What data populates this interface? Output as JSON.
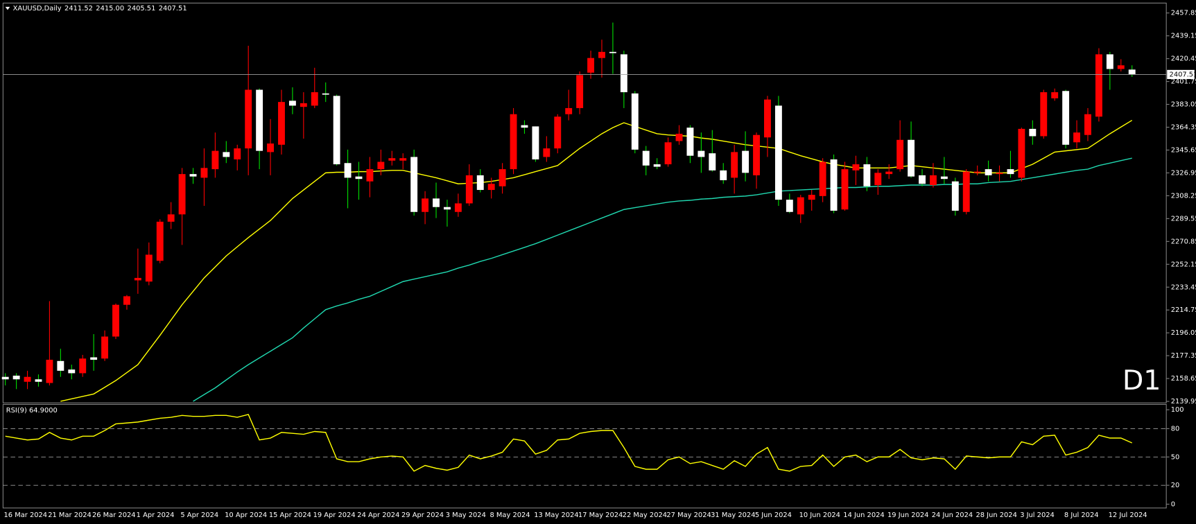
{
  "chart_data": [
    {
      "type": "candlestick",
      "title": "XAUUSD,Daily",
      "ohlc_labels": [
        "2411.52",
        "2415.00",
        "2405.51",
        "2407.51"
      ],
      "categories": [
        "16 Mar 2024",
        null,
        null,
        null,
        "21 Mar 2024",
        null,
        null,
        null,
        "26 Mar 2024",
        null,
        null,
        null,
        "1 Apr 2024",
        null,
        null,
        null,
        "5 Apr 2024",
        null,
        null,
        null,
        "10 Apr 2024",
        null,
        null,
        null,
        "15 Apr 2024",
        null,
        null,
        null,
        "19 Apr 2024",
        null,
        null,
        null,
        "24 Apr 2024",
        null,
        null,
        null,
        "29 Apr 2024",
        null,
        null,
        null,
        "3 May 2024",
        null,
        null,
        null,
        "8 May 2024",
        null,
        null,
        null,
        "13 May 2024",
        null,
        null,
        null,
        "17 May 2024",
        null,
        null,
        null,
        "22 May 2024",
        null,
        null,
        null,
        "27 May 2024",
        null,
        null,
        null,
        "31 May 2024",
        null,
        null,
        null,
        "5 Jun 2024",
        null,
        null,
        null,
        "10 Jun 2024",
        null,
        null,
        null,
        "14 Jun 2024",
        null,
        null,
        null,
        "19 Jun 2024",
        null,
        null,
        null,
        "24 Jun 2024",
        null,
        null,
        null,
        "28 Jun 2024",
        null,
        null,
        null,
        "3 Jul 2024",
        null,
        null,
        null,
        "8 Jul 2024",
        null,
        null,
        null,
        "12 Jul 2024",
        null,
        null
      ],
      "open": [
        2160,
        2161,
        2156,
        2158,
        2155,
        2173,
        2166,
        2163,
        2176,
        2175,
        2193,
        2219,
        2239,
        2238,
        2255,
        2287,
        2293,
        2326,
        2323,
        2330,
        2344,
        2338,
        2347,
        2395,
        2344,
        2350,
        2386,
        2381,
        2382,
        2392,
        2390,
        2335,
        2324,
        2320,
        2330,
        2337,
        2337,
        2340,
        2295,
        2306,
        2299,
        2295,
        2302,
        2325,
        2313,
        2316,
        2330,
        2366,
        2365,
        2340,
        2347,
        2375,
        2380,
        2409,
        2421,
        2426,
        2424,
        2392,
        2345,
        2334,
        2334,
        2353,
        2364,
        2345,
        2343,
        2329,
        2323,
        2345,
        2325,
        2356,
        2382,
        2305,
        2293,
        2305,
        2308,
        2338,
        2297,
        2329,
        2334,
        2317,
        2326,
        2330,
        2354,
        2325,
        2317,
        2324,
        2320,
        2295,
        2327,
        2330,
        2326,
        2330,
        2323,
        2363,
        2357,
        2388,
        2394,
        2352,
        2358,
        2373,
        2424,
        2412,
        2411.52
      ],
      "high": [
        2163,
        2163,
        2165,
        2162,
        2222,
        2183,
        2170,
        2178,
        2195,
        2198,
        2220,
        2227,
        2265,
        2270,
        2289,
        2303,
        2331,
        2331,
        2347,
        2360,
        2353,
        2350,
        2431,
        2396,
        2371,
        2395,
        2397,
        2393,
        2413,
        2401,
        2391,
        2346,
        2336,
        2340,
        2346,
        2345,
        2343,
        2346,
        2312,
        2319,
        2305,
        2310,
        2334,
        2330,
        2323,
        2335,
        2380,
        2370,
        2365,
        2357,
        2375,
        2395,
        2410,
        2427,
        2436,
        2450,
        2427,
        2394,
        2349,
        2339,
        2356,
        2366,
        2366,
        2360,
        2362,
        2335,
        2350,
        2361,
        2360,
        2390,
        2390,
        2310,
        2309,
        2313,
        2339,
        2342,
        2336,
        2341,
        2340,
        2330,
        2334,
        2370,
        2369,
        2330,
        2335,
        2340,
        2323,
        2330,
        2333,
        2337,
        2333,
        2345,
        2364,
        2370,
        2395,
        2396,
        2395,
        2370,
        2380,
        2429,
        2426,
        2420,
        2415
      ],
      "low": [
        2153,
        2150,
        2150,
        2152,
        2153,
        2160,
        2158,
        2160,
        2165,
        2173,
        2191,
        2215,
        2228,
        2235,
        2253,
        2281,
        2268,
        2318,
        2300,
        2323,
        2335,
        2329,
        2325,
        2330,
        2325,
        2342,
        2375,
        2355,
        2380,
        2385,
        2333,
        2298,
        2305,
        2307,
        2325,
        2333,
        2330,
        2292,
        2285,
        2290,
        2283,
        2291,
        2300,
        2311,
        2306,
        2310,
        2326,
        2359,
        2336,
        2336,
        2343,
        2370,
        2375,
        2404,
        2405,
        2408,
        2380,
        2343,
        2325,
        2330,
        2332,
        2350,
        2335,
        2327,
        2328,
        2318,
        2310,
        2320,
        2314,
        2340,
        2300,
        2294,
        2286,
        2296,
        2303,
        2294,
        2296,
        2317,
        2312,
        2309,
        2322,
        2328,
        2323,
        2316,
        2315,
        2318,
        2292,
        2293,
        2325,
        2320,
        2320,
        2323,
        2320,
        2350,
        2355,
        2386,
        2347,
        2347,
        2353,
        2369,
        2395,
        2410,
        2405.51
      ],
      "close": [
        2158,
        2158,
        2160,
        2156,
        2174,
        2165,
        2163,
        2175,
        2174,
        2193,
        2219,
        2226,
        2241,
        2260,
        2287,
        2293,
        2326,
        2324,
        2331,
        2345,
        2340,
        2347,
        2395,
        2345,
        2351,
        2385,
        2382,
        2384,
        2393,
        2391,
        2334,
        2323,
        2322,
        2330,
        2336,
        2339,
        2339,
        2295,
        2306,
        2299,
        2297,
        2302,
        2325,
        2313,
        2318,
        2330,
        2375,
        2364,
        2338,
        2347,
        2373,
        2380,
        2407,
        2421,
        2426,
        2425,
        2393,
        2346,
        2333,
        2332,
        2352,
        2359,
        2341,
        2340,
        2329,
        2321,
        2344,
        2327,
        2358,
        2387,
        2305,
        2295,
        2307,
        2309,
        2336,
        2296,
        2330,
        2334,
        2316,
        2327,
        2328,
        2354,
        2324,
        2318,
        2325,
        2322,
        2296,
        2328,
        2328,
        2325,
        2327,
        2326,
        2363,
        2357,
        2393,
        2393,
        2350,
        2360,
        2375,
        2424,
        2412,
        2415,
        2407.51
      ],
      "up_color": "#ff0000",
      "down_color": "#ffffff",
      "up_wick_color": "#ff0000",
      "down_wick_color": "#00e000",
      "moving_averages": [
        {
          "color": "#ffff00",
          "values": [
            null,
            null,
            null,
            null,
            null,
            2140,
            2142,
            2144,
            2146,
            2151.5,
            2157,
            2163.5,
            2170,
            2182,
            2194,
            2206.5,
            2219,
            2230,
            2241,
            2250,
            2259,
            2266.5,
            2274,
            2281,
            2288,
            2297,
            2306,
            2313,
            2320,
            2327,
            2327.5,
            2327.5,
            2328,
            2328,
            2328.5,
            2329,
            2329,
            2327,
            2325,
            2323,
            2320.5,
            2318,
            2318.5,
            2319,
            2320,
            2321.5,
            2323,
            2325.5,
            2328,
            2330.5,
            2333,
            2340,
            2347,
            2353,
            2359,
            2364,
            2368,
            2365,
            2362,
            2359,
            2358,
            2357.5,
            2357,
            2355.5,
            2354.5,
            2353,
            2351.5,
            2350,
            2349,
            2348,
            2347,
            2344,
            2341,
            2338.5,
            2336,
            2334,
            2332.5,
            2331,
            2331,
            2331,
            2331,
            2332,
            2333,
            2332,
            2331,
            2330,
            2329,
            2328,
            2327,
            2327,
            2327,
            2327,
            2330.5,
            2334,
            2339,
            2344,
            2345,
            2346,
            2347,
            2353,
            2359,
            2364.5,
            2370
          ]
        },
        {
          "color": "#20d8b0",
          "values": [
            null,
            null,
            null,
            null,
            null,
            null,
            null,
            null,
            null,
            null,
            null,
            null,
            null,
            null,
            null,
            null,
            null,
            2140,
            2145.5,
            2151,
            2157.5,
            2164,
            2170,
            2175.5,
            2181,
            2186.5,
            2192,
            2200,
            2207.5,
            2215,
            2218,
            2220.5,
            2223.5,
            2226,
            2230,
            2234,
            2238,
            2240,
            2242,
            2244,
            2246,
            2249,
            2251.5,
            2254.5,
            2257,
            2260,
            2263,
            2266,
            2269,
            2272.5,
            2276,
            2279.5,
            2283,
            2286.5,
            2290,
            2293.5,
            2297,
            2298.5,
            2300,
            2301.5,
            2303,
            2304,
            2304.5,
            2305.5,
            2306,
            2307,
            2307.5,
            2308,
            2309,
            2310.5,
            2312,
            2312.5,
            2313,
            2313.5,
            2314,
            2314.5,
            2315,
            2315,
            2315.5,
            2316,
            2316,
            2316.5,
            2317,
            2317,
            2317,
            2317.5,
            2317.5,
            2318,
            2318,
            2319,
            2319.5,
            2320,
            2321.5,
            2323,
            2324.5,
            2326,
            2327.5,
            2329,
            2330,
            2333,
            2335,
            2337,
            2339
          ]
        }
      ],
      "last_price": 2407.51,
      "ylim": [
        2139.33,
        2465.33
      ],
      "yticks": [
        2457.85,
        2439.15,
        2420.45,
        2401.75,
        2383.05,
        2364.35,
        2345.65,
        2326.95,
        2308.25,
        2289.55,
        2270.85,
        2252.15,
        2233.45,
        2214.75,
        2196.05,
        2177.35,
        2158.65,
        2139.95
      ],
      "grid": false,
      "annotation": "D1",
      "annotation_color": "#ff0000"
    },
    {
      "type": "line",
      "title": "RSI(9) 64.9000",
      "color": "#ffff00",
      "values": [
        72,
        70,
        68,
        69,
        76,
        70,
        68,
        72,
        72,
        78,
        85,
        86,
        87,
        89,
        91,
        92,
        94,
        93,
        93,
        94,
        94,
        92,
        95,
        68,
        70,
        76,
        75,
        74,
        77,
        76,
        48,
        45,
        45,
        48,
        50,
        51,
        50,
        35,
        41,
        38,
        36,
        39,
        52,
        48,
        51,
        55,
        69,
        67,
        53,
        57,
        68,
        69,
        75,
        77,
        78,
        78,
        60,
        40,
        37,
        37,
        47,
        50,
        43,
        45,
        41,
        37,
        46,
        40,
        53,
        60,
        37,
        35,
        40,
        41,
        52,
        40,
        50,
        52,
        45,
        50,
        50,
        58,
        49,
        47,
        49,
        48,
        37,
        51,
        50,
        49,
        50,
        50,
        66,
        63,
        72,
        73,
        52,
        55,
        60,
        73,
        70,
        70,
        64.9
      ],
      "ylim": [
        0,
        100
      ],
      "yticks": [
        100,
        80,
        50,
        20,
        0
      ],
      "levels": [
        80,
        50,
        20
      ]
    }
  ]
}
